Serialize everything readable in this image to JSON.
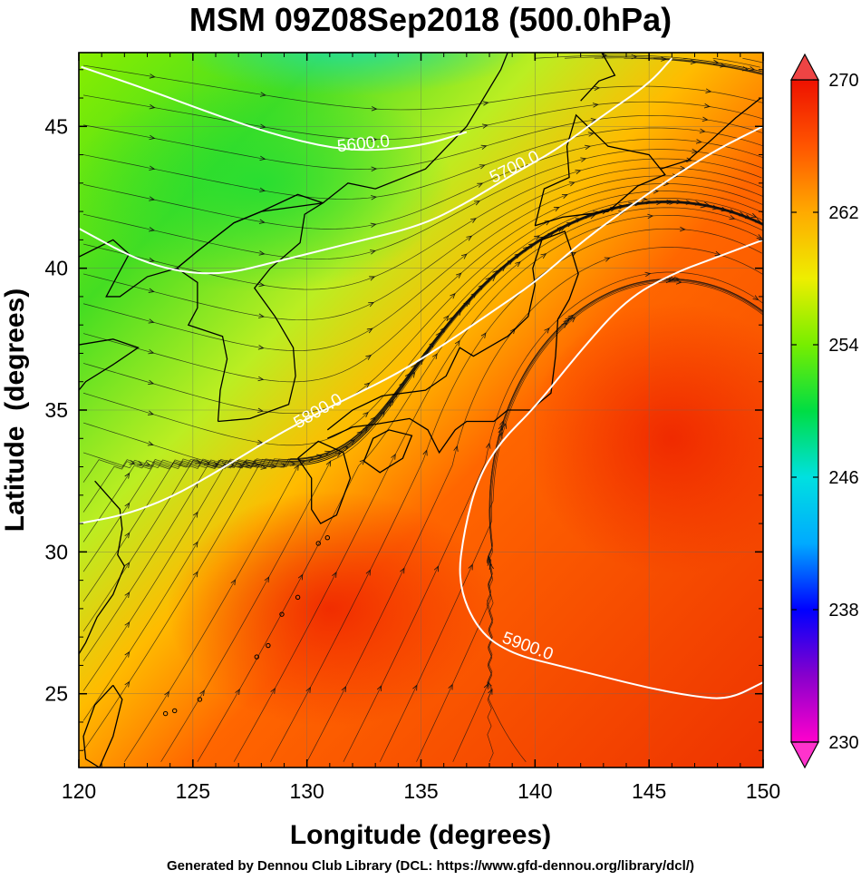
{
  "title": "MSM 09Z08Sep2018 (500.0hPa)",
  "footer": "Generated by Dennou Club Library (DCL: https://www.gfd-dennou.org/library/dcl/)",
  "chart_data": {
    "type": "heatmap",
    "title": "MSM 09Z08Sep2018 (500.0hPa)",
    "xlabel": "Longitude (degrees)",
    "ylabel": "Latitude  (degrees)",
    "xlim": [
      120,
      150
    ],
    "ylim": [
      22.4,
      47.6
    ],
    "x_ticks": [
      120,
      125,
      130,
      135,
      140,
      145,
      150
    ],
    "y_ticks": [
      25,
      30,
      35,
      40,
      45
    ],
    "grid": true,
    "colorbar": {
      "range": [
        230,
        270
      ],
      "tick_labels": [
        230,
        238,
        246,
        254,
        262,
        270
      ],
      "colors": [
        "#ff00cc",
        "#8800cc",
        "#0000ff",
        "#00aaff",
        "#00e0e0",
        "#00dd44",
        "#77ee00",
        "#eeee00",
        "#ffaa00",
        "#ff5500",
        "#ee1100"
      ]
    },
    "contours": [
      {
        "label": "5600.0",
        "color": "#ffffff",
        "points": [
          [
            120.1,
            47.1
          ],
          [
            123,
            46.3
          ],
          [
            126,
            45.4
          ],
          [
            129,
            44.6
          ],
          [
            132,
            44.1
          ],
          [
            135,
            44.3
          ],
          [
            137,
            44.8
          ]
        ]
      },
      {
        "label": "5700.0",
        "color": "#ffffff",
        "points": [
          [
            120,
            41.4
          ],
          [
            123,
            40.1
          ],
          [
            126,
            39.7
          ],
          [
            129,
            40.3
          ],
          [
            132,
            40.9
          ],
          [
            135,
            41.5
          ],
          [
            137,
            42.3
          ],
          [
            139,
            43.3
          ],
          [
            141,
            44.2
          ],
          [
            143,
            45.4
          ],
          [
            145,
            46.5
          ],
          [
            146,
            47.4
          ]
        ]
      },
      {
        "label": "5800.0",
        "color": "#ffffff",
        "points": [
          [
            120,
            31
          ],
          [
            122,
            31.3
          ],
          [
            124,
            31.9
          ],
          [
            126,
            32.8
          ],
          [
            128,
            33.8
          ],
          [
            130,
            34.7
          ],
          [
            132,
            35.5
          ],
          [
            134,
            36.3
          ],
          [
            136,
            37.3
          ],
          [
            138,
            38.4
          ],
          [
            140,
            39.5
          ],
          [
            142,
            40.9
          ],
          [
            144,
            42.1
          ],
          [
            146,
            43.2
          ],
          [
            148,
            44.2
          ],
          [
            150,
            45
          ]
        ]
      },
      {
        "label": "5900.0",
        "color": "#ffffff",
        "points": [
          [
            150,
            25.4
          ],
          [
            148.5,
            24.8
          ],
          [
            147,
            24.9
          ],
          [
            145,
            25.2
          ],
          [
            143,
            25.6
          ],
          [
            141,
            26
          ],
          [
            139,
            26.4
          ],
          [
            137.5,
            27.2
          ],
          [
            136.6,
            28.9
          ],
          [
            136.9,
            30.8
          ],
          [
            137.5,
            32.6
          ],
          [
            138.5,
            33.9
          ],
          [
            140,
            35.1
          ],
          [
            142,
            37.1
          ],
          [
            144,
            38.9
          ],
          [
            146,
            39.8
          ],
          [
            148,
            40.4
          ],
          [
            150,
            41
          ]
        ]
      }
    ],
    "colorbar_label_note": ""
  }
}
